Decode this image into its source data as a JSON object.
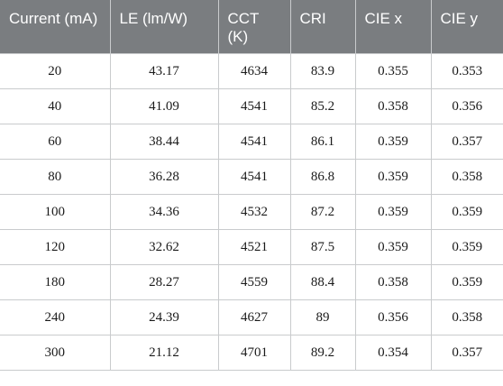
{
  "table": {
    "headers": [
      "Current (mA)",
      "LE (lm/W)",
      "CCT (K)",
      "CRI",
      "CIE x",
      "CIE y"
    ],
    "rows": [
      [
        "20",
        "43.17",
        "4634",
        "83.9",
        "0.355",
        "0.353"
      ],
      [
        "40",
        "41.09",
        "4541",
        "85.2",
        "0.358",
        "0.356"
      ],
      [
        "60",
        "38.44",
        "4541",
        "86.1",
        "0.359",
        "0.357"
      ],
      [
        "80",
        "36.28",
        "4541",
        "86.8",
        "0.359",
        "0.358"
      ],
      [
        "100",
        "34.36",
        "4532",
        "87.2",
        "0.359",
        "0.359"
      ],
      [
        "120",
        "32.62",
        "4521",
        "87.5",
        "0.359",
        "0.359"
      ],
      [
        "180",
        "28.27",
        "4559",
        "88.4",
        "0.358",
        "0.359"
      ],
      [
        "240",
        "24.39",
        "4627",
        "89",
        "0.356",
        "0.358"
      ],
      [
        "300",
        "21.12",
        "4701",
        "89.2",
        "0.354",
        "0.357"
      ]
    ]
  },
  "colors": {
    "header_background": "#7a7d80",
    "header_text": "#ffffff",
    "grid_line": "#c9cbcd"
  }
}
